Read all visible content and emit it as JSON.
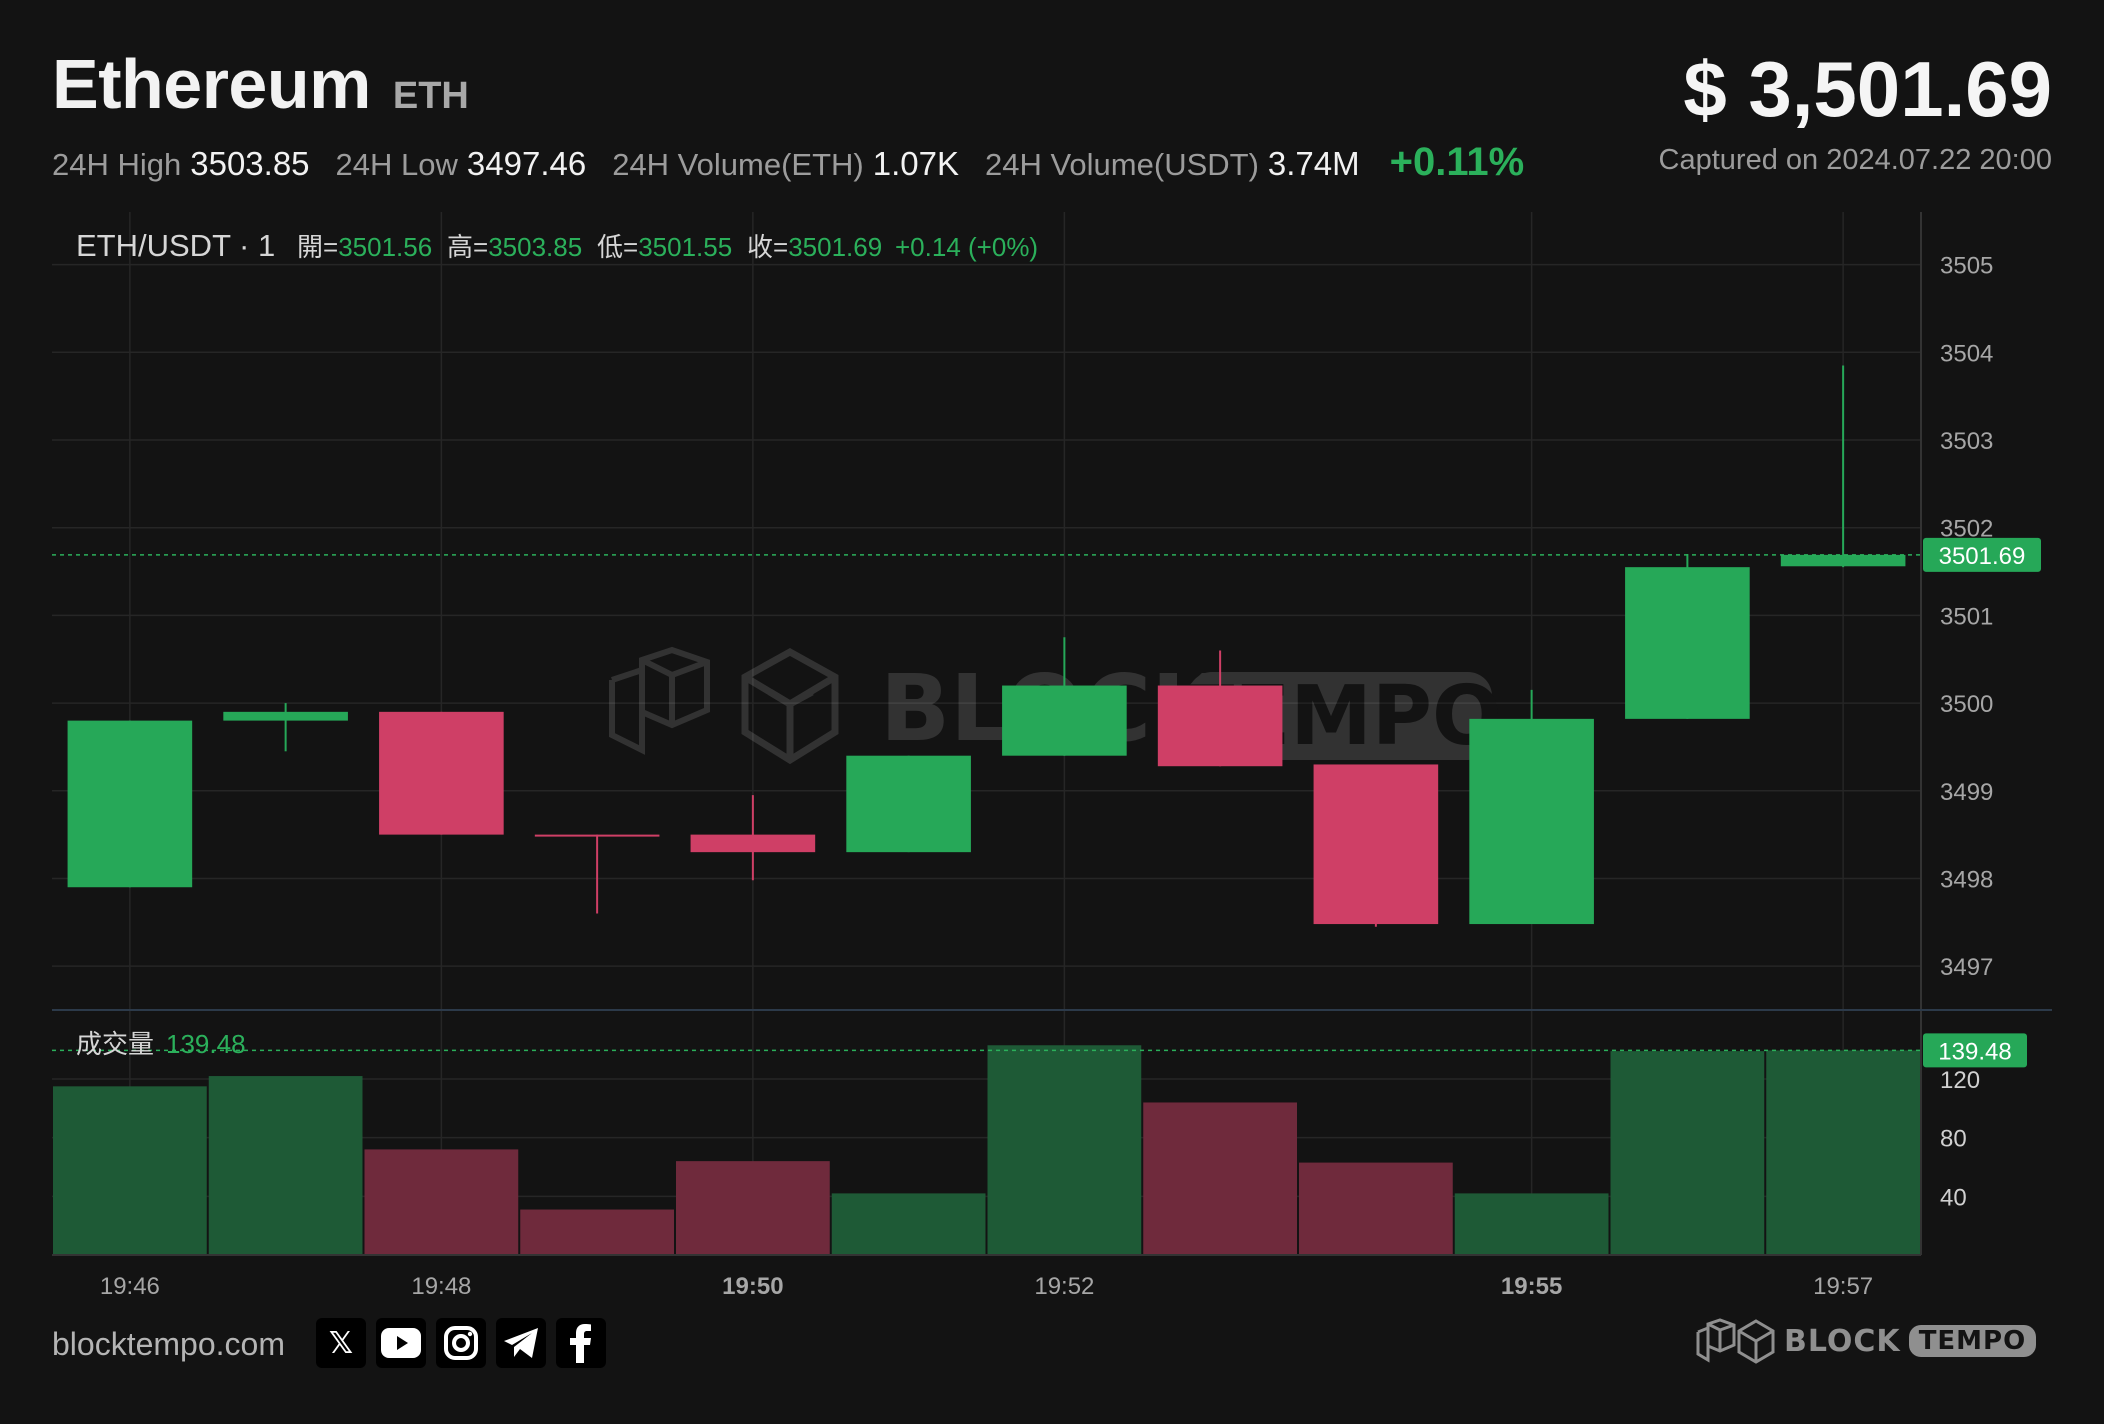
{
  "header": {
    "coin_name": "Ethereum",
    "coin_symbol": "ETH",
    "price": "$ 3,501.69",
    "captured": "Captured on 2024.07.22 20:00",
    "stats": [
      {
        "label": "24H High",
        "value": "3503.85"
      },
      {
        "label": "24H Low",
        "value": "3497.46"
      },
      {
        "label": "24H Volume(ETH)",
        "value": "1.07K"
      },
      {
        "label": "24H Volume(USDT)",
        "value": "3.74M"
      }
    ],
    "change": "+0.11%"
  },
  "legend": {
    "pair": "ETH/USDT · 1",
    "open_label": "開=",
    "open_value": "3501.56",
    "high_label": "高=",
    "high_value": "3503.85",
    "low_label": "低=",
    "low_value": "3501.55",
    "close_label": "收=",
    "close_value": "3501.69",
    "change_text": "+0.14 (+0%)"
  },
  "volume_legend": {
    "label": "成交量",
    "value": "139.48"
  },
  "watermark": {
    "brand_left": "BLOCK",
    "brand_right": "TEMPO"
  },
  "footer": {
    "site": "blocktempo.com",
    "socials": [
      "x-icon",
      "youtube-icon",
      "instagram-icon",
      "telegram-icon",
      "facebook-icon"
    ],
    "brand_left": "BLOCK",
    "brand_right": "TEMPO"
  },
  "colors": {
    "up": "#26a858",
    "down": "#cf3f66",
    "vol_up": "#1e5a36",
    "vol_down": "#6f2a3c",
    "grid": "#262626",
    "text": "#a6a6a6"
  },
  "chart_data": {
    "type": "candlestick",
    "x_ticks": [
      {
        "label": "19:46",
        "index": 0,
        "bold": false
      },
      {
        "label": "19:48",
        "index": 2,
        "bold": false
      },
      {
        "label": "19:50",
        "index": 4,
        "bold": true
      },
      {
        "label": "19:52",
        "index": 6,
        "bold": false
      },
      {
        "label": "19:55",
        "index": 9,
        "bold": true
      },
      {
        "label": "19:57",
        "index": 11,
        "bold": false
      }
    ],
    "price_ylim": [
      3496.5,
      3505.6
    ],
    "price_ticks": [
      3497,
      3498,
      3499,
      3500,
      3501,
      3502,
      3503,
      3504,
      3505
    ],
    "last_price": 3501.69,
    "last_price_label": "3501.69",
    "candles": [
      {
        "open": 3497.9,
        "high": 3499.8,
        "low": 3497.9,
        "close": 3499.8
      },
      {
        "open": 3499.8,
        "high": 3500.0,
        "low": 3499.45,
        "close": 3499.9
      },
      {
        "open": 3499.9,
        "high": 3499.9,
        "low": 3498.5,
        "close": 3498.5
      },
      {
        "open": 3498.5,
        "high": 3498.5,
        "low": 3497.6,
        "close": 3498.49
      },
      {
        "open": 3498.5,
        "high": 3498.95,
        "low": 3497.98,
        "close": 3498.3
      },
      {
        "open": 3498.3,
        "high": 3499.4,
        "low": 3498.3,
        "close": 3499.4
      },
      {
        "open": 3499.4,
        "high": 3500.75,
        "low": 3499.4,
        "close": 3500.2
      },
      {
        "open": 3500.2,
        "high": 3500.6,
        "low": 3499.28,
        "close": 3499.28
      },
      {
        "open": 3499.3,
        "high": 3499.3,
        "low": 3497.45,
        "close": 3497.48
      },
      {
        "open": 3497.48,
        "high": 3500.15,
        "low": 3497.48,
        "close": 3499.82
      },
      {
        "open": 3499.82,
        "high": 3501.7,
        "low": 3499.82,
        "close": 3501.55
      },
      {
        "open": 3501.56,
        "high": 3503.85,
        "low": 3501.55,
        "close": 3501.69
      }
    ],
    "volume_ylim": [
      0,
      150
    ],
    "volume_ticks": [
      40,
      80,
      120
    ],
    "last_volume": 139.48,
    "last_volume_label": "139.48",
    "volumes": [
      115,
      122,
      72,
      31,
      64,
      42,
      143,
      104,
      63,
      42,
      139,
      139.48
    ]
  }
}
